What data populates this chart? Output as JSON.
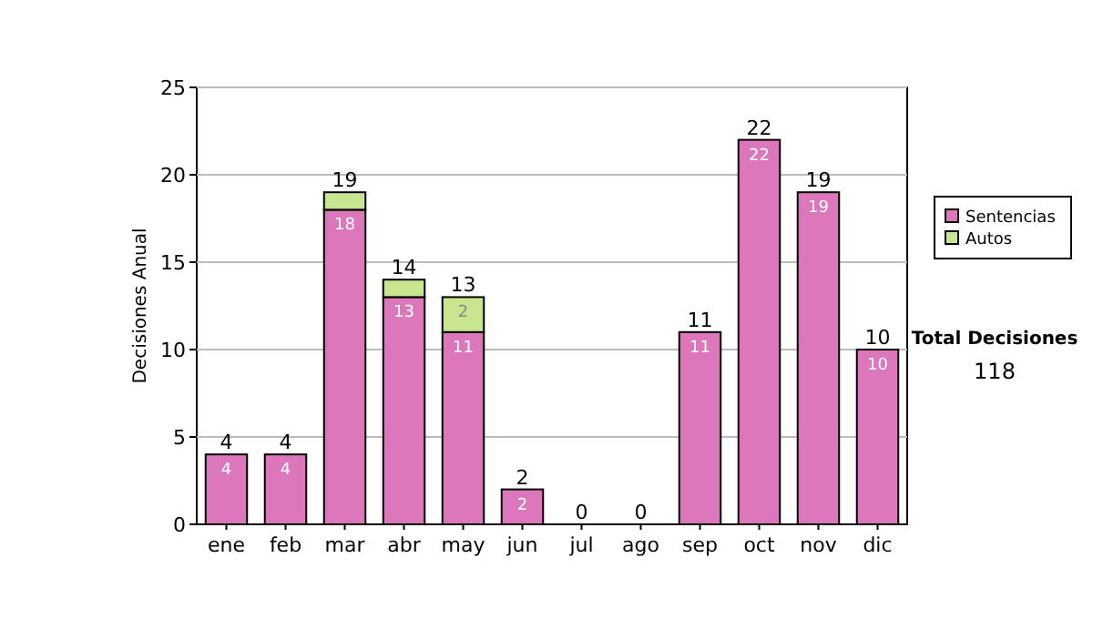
{
  "chart_data": {
    "type": "bar",
    "stacked": true,
    "ylabel": "Decisiones Anual",
    "categories": [
      "ene",
      "feb",
      "mar",
      "abr",
      "may",
      "jun",
      "jul",
      "ago",
      "sep",
      "oct",
      "nov",
      "dic"
    ],
    "series": [
      {
        "name": "Sentencias",
        "color": "#dd77bb",
        "values": [
          4,
          4,
          18,
          13,
          11,
          2,
          0,
          0,
          11,
          22,
          19,
          10
        ],
        "value_labels": [
          "4",
          "4",
          "18",
          "13",
          "11",
          "2",
          null,
          null,
          "11",
          "22",
          "19",
          "10"
        ]
      },
      {
        "name": "Autos",
        "color": "#c8e690",
        "values": [
          0,
          0,
          1,
          1,
          2,
          0,
          0,
          0,
          0,
          0,
          0,
          0
        ],
        "value_labels": [
          null,
          null,
          null,
          null,
          "2",
          null,
          null,
          null,
          null,
          null,
          null,
          null
        ]
      }
    ],
    "totals": [
      "4",
      "4",
      "19",
      "14",
      "13",
      "2",
      "0",
      "0",
      "11",
      "22",
      "19",
      "10"
    ],
    "ylim": [
      0,
      25
    ],
    "yticks": [
      0,
      5,
      10,
      15,
      20,
      25
    ],
    "grid": "y",
    "legend": "right",
    "annotations": [
      "Total Decisiones",
      "118"
    ]
  }
}
